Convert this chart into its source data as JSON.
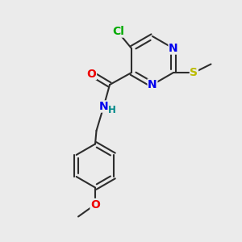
{
  "bg_color": "#ebebeb",
  "bond_color": "#2d2d2d",
  "bond_width": 1.5,
  "atom_colors": {
    "Cl": "#00aa00",
    "N": "#0000ee",
    "O": "#ee0000",
    "S": "#bbbb00",
    "H": "#008888",
    "C": "#2d2d2d"
  },
  "font_size_atoms": 10,
  "font_size_small": 8.5,
  "fig_width": 3.0,
  "fig_height": 3.0,
  "dpi": 100,
  "xlim": [
    0,
    10
  ],
  "ylim": [
    0,
    10
  ]
}
